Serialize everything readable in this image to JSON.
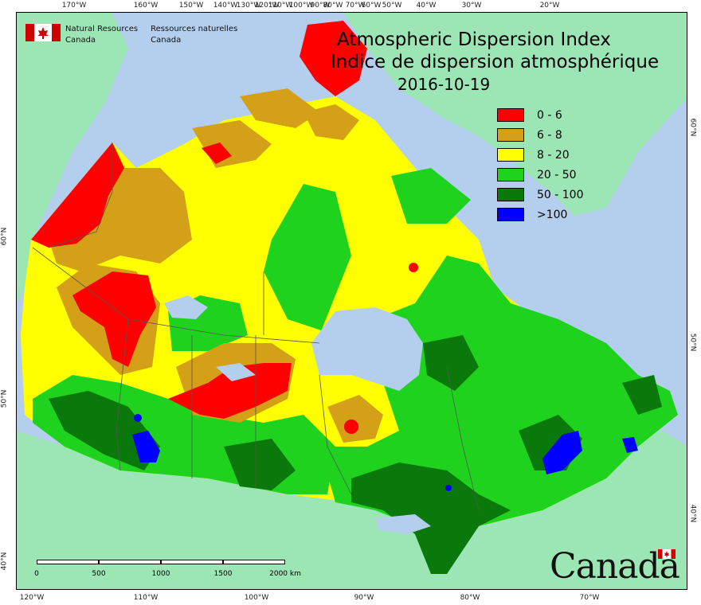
{
  "title": {
    "english": "Atmospheric Dispersion Index",
    "french": "Indice de dispersion atmosphérique",
    "date": "2016-10-19"
  },
  "agency": {
    "english": [
      "Natural Resources",
      "Canada"
    ],
    "french": [
      "Ressources naturelles",
      "Canada"
    ]
  },
  "wordmark": "Canada",
  "legend": [
    {
      "label": "0 - 6",
      "color": "#ff0000"
    },
    {
      "label": "6 - 8",
      "color": "#d4a017"
    },
    {
      "label": "8 - 20",
      "color": "#ffff00"
    },
    {
      "label": "20 - 50",
      "color": "#1ed21e"
    },
    {
      "label": "50 - 100",
      "color": "#0a780a"
    },
    {
      "label": ">100",
      "color": "#0000ff"
    }
  ],
  "longitude_ticks_top": [
    "170°W",
    "160°W",
    "150°W",
    "140°W",
    "130°W",
    "120°W",
    "110°W",
    "100°W",
    "90°W",
    "80°W",
    "70°W",
    "60°W",
    "50°W",
    "40°W",
    "30°W",
    "20°W"
  ],
  "longitude_ticks_bottom": [
    "120°W",
    "110°W",
    "100°W",
    "90°W",
    "80°W",
    "70°W"
  ],
  "latitude_ticks_left": [
    "60°N",
    "50°N",
    "40°N"
  ],
  "latitude_ticks_right": [
    "60°N",
    "50°N",
    "40°N"
  ],
  "scale_bar": {
    "labels": [
      "0",
      "500",
      "1000",
      "1500",
      "2000"
    ],
    "unit": "km"
  },
  "colors": {
    "ocean": "#b4cfee",
    "foreign_land": "#9be6b4",
    "lake": "#b4cfee",
    "boundary": "#555555"
  }
}
